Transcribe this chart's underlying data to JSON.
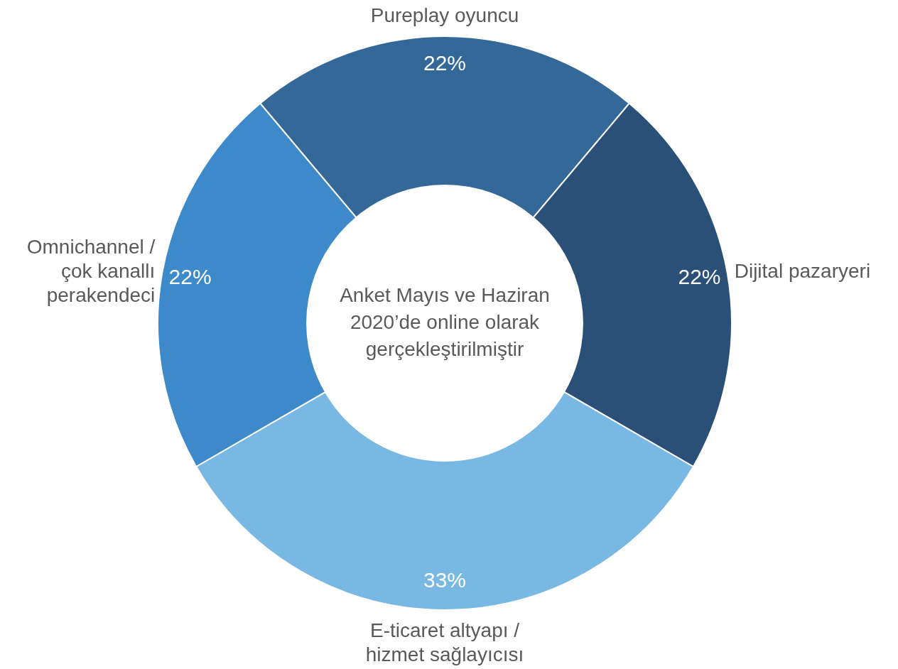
{
  "chart_data": {
    "type": "donut",
    "categories": [
      "Pureplay oyuncu",
      "Dijital pazaryeri",
      "E-ticaret altyapı / hizmet sağlayıcısı",
      "Omnichannel / çok kanallı perakendeci"
    ],
    "values": [
      22,
      22,
      33,
      22
    ],
    "colors": [
      "#346899",
      "#2a5078",
      "#7ab8e4",
      "#3d89c9"
    ],
    "value_labels": [
      "22%",
      "22%",
      "33%",
      "22%"
    ],
    "annotations": [
      "Anket Mayıs ve Haziran 2020’de online olarak gerçekleştirilmiştir"
    ],
    "legend": false
  }
}
